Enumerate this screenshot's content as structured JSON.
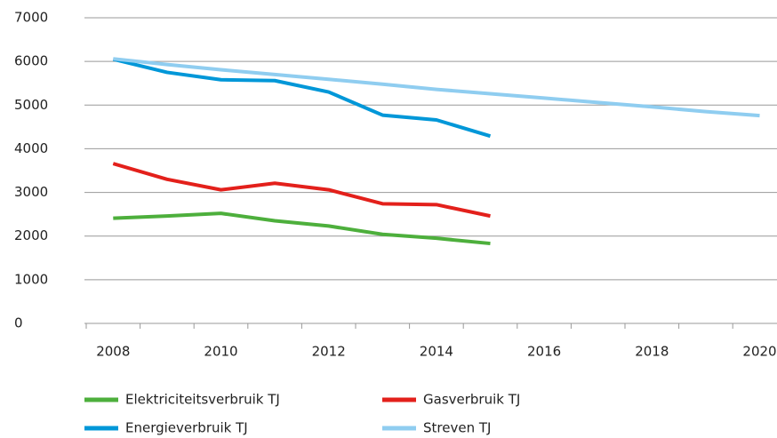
{
  "chart_data": {
    "type": "line",
    "categories": [
      "2008",
      null,
      "2010",
      null,
      "2012",
      null,
      "2014",
      null,
      "2016",
      null,
      "2018",
      null,
      "2020"
    ],
    "series": [
      {
        "name": "Elektriciteitsverbruik TJ",
        "color": "#4daf3c",
        "values": [
          2410,
          2460,
          2520,
          2350,
          2230,
          2040,
          1950,
          1830,
          null,
          null,
          null,
          null,
          null
        ]
      },
      {
        "name": "Gasverbruik TJ",
        "color": "#e3201b",
        "values": [
          3660,
          3300,
          3060,
          3210,
          3060,
          2740,
          2720,
          2460,
          null,
          null,
          null,
          null,
          null
        ]
      },
      {
        "name": "Energieverbruik TJ",
        "color": "#0097d8",
        "values": [
          6050,
          5750,
          5580,
          5560,
          5300,
          4770,
          4660,
          4290,
          null,
          null,
          null,
          null,
          null
        ]
      },
      {
        "name": "Streven TJ",
        "color": "#8fcdf0",
        "values": [
          6060,
          5930,
          5810,
          5700,
          5590,
          5480,
          5360,
          5260,
          5160,
          5060,
          4960,
          4850,
          4760
        ]
      }
    ],
    "ylim": [
      0,
      7000
    ],
    "yticks": [
      0,
      1000,
      2000,
      3000,
      4000,
      5000,
      6000,
      7000
    ],
    "grid": true,
    "legend": "bottom"
  }
}
